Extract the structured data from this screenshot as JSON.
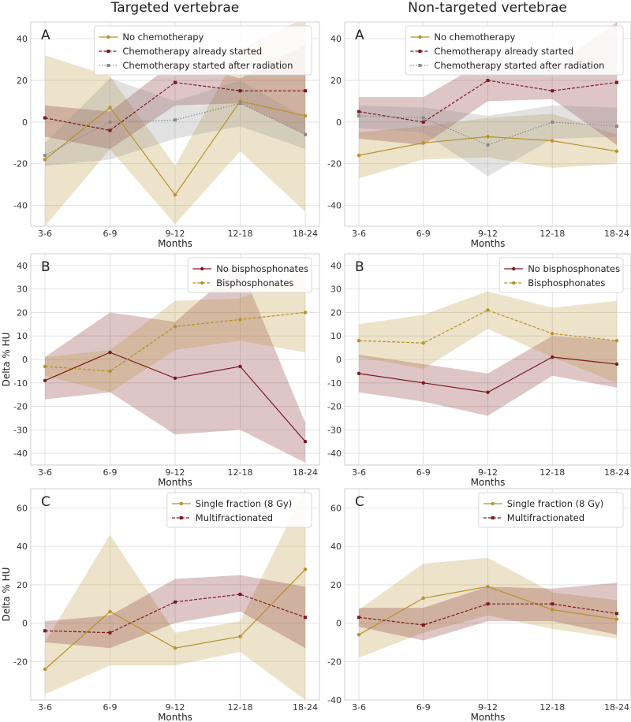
{
  "column_titles": [
    "Targeted vertebrae",
    "Non-targeted vertebrae"
  ],
  "colors": {
    "gold": "#b8912a",
    "maroon": "#7b1a1f",
    "gray": "#8a8a8a",
    "grid": "#e2e2e2",
    "frame": "#cfcfcf"
  },
  "chart_data": [
    {
      "type": "line",
      "panel": "A",
      "column": "Targeted vertebrae",
      "xlabel": "Months",
      "ylabel": "",
      "ylim": [
        -50,
        48
      ],
      "yticks": [
        -40,
        -20,
        0,
        20,
        40
      ],
      "categories": [
        "3-6",
        "6-9",
        "9-12",
        "12-18",
        "18-24"
      ],
      "legend_position": "top-right",
      "series": [
        {
          "name": "No chemotherapy",
          "color": "#b8912a",
          "dash": "",
          "marker": "circle",
          "values": [
            -18,
            7,
            -35,
            10,
            3
          ],
          "lower": [
            -50,
            -13,
            -49,
            -14,
            -43
          ],
          "upper": [
            32,
            22,
            -21,
            35,
            50
          ]
        },
        {
          "name": "Chemotherapy already started",
          "color": "#7b1a1f",
          "dash": "4,2",
          "marker": "square",
          "values": [
            2,
            -4,
            19,
            15,
            15
          ],
          "lower": [
            -7,
            -13,
            8,
            9,
            -6
          ],
          "upper": [
            8,
            5,
            29,
            21,
            37
          ]
        },
        {
          "name": "Chemotherapy started after radiation",
          "color": "#8a8a8a",
          "dash": "1.5,2",
          "marker": "square",
          "values": [
            -16,
            0,
            1,
            9,
            -6
          ],
          "lower": [
            -21,
            -18,
            -8,
            -2,
            -13
          ],
          "upper": [
            -10,
            21,
            10,
            20,
            2
          ]
        }
      ]
    },
    {
      "type": "line",
      "panel": "A",
      "column": "Non-targeted vertebrae",
      "xlabel": "Months",
      "ylabel": "",
      "ylim": [
        -50,
        48
      ],
      "yticks": [
        -40,
        -20,
        0,
        20,
        40
      ],
      "categories": [
        "3-6",
        "6-9",
        "9-12",
        "12-18",
        "18-24"
      ],
      "legend_position": "top-right",
      "series": [
        {
          "name": "No chemotherapy",
          "color": "#b8912a",
          "dash": "",
          "marker": "circle",
          "values": [
            -16,
            -10,
            -7,
            -9,
            -14
          ],
          "lower": [
            -27,
            -18,
            -17,
            -22,
            -20
          ],
          "upper": [
            -5,
            -2,
            2,
            4,
            -6
          ]
        },
        {
          "name": "Chemotherapy already started",
          "color": "#7b1a1f",
          "dash": "4,2",
          "marker": "square",
          "values": [
            5,
            0,
            20,
            15,
            19
          ],
          "lower": [
            -8,
            -11,
            10,
            11,
            -11
          ],
          "upper": [
            12,
            12,
            30,
            26,
            48
          ]
        },
        {
          "name": "Chemotherapy started after radiation",
          "color": "#8a8a8a",
          "dash": "1.5,2",
          "marker": "square",
          "values": [
            3,
            2,
            -11,
            0,
            -2
          ],
          "lower": [
            -3,
            -5,
            -26,
            -8,
            -7
          ],
          "upper": [
            8,
            7,
            3,
            8,
            7
          ]
        }
      ]
    },
    {
      "type": "line",
      "panel": "B",
      "column": "Targeted vertebrae",
      "xlabel": "Months",
      "ylabel": "Delta % HU",
      "ylim": [
        -45,
        45
      ],
      "yticks": [
        -40,
        -30,
        -20,
        -10,
        0,
        10,
        20,
        30,
        40
      ],
      "categories": [
        "3-6",
        "6-9",
        "9-12",
        "12-18",
        "18-24"
      ],
      "legend_position": "top-right",
      "series": [
        {
          "name": "No bisphosphonates",
          "color": "#7b1a1f",
          "dash": "",
          "marker": "circle",
          "values": [
            -9,
            3,
            -8,
            -3,
            -35
          ],
          "lower": [
            -17,
            -14,
            -32,
            -30,
            -44
          ],
          "upper": [
            1,
            20,
            16,
            40,
            -27
          ]
        },
        {
          "name": "Bisphosphonates",
          "color": "#b8912a",
          "dash": "4,2",
          "marker": "circle",
          "values": [
            -3,
            -5,
            14,
            17,
            20
          ],
          "lower": [
            -7,
            -14,
            4,
            8,
            3
          ],
          "upper": [
            1,
            4,
            25,
            26,
            38
          ]
        }
      ]
    },
    {
      "type": "line",
      "panel": "B",
      "column": "Non-targeted vertebrae",
      "xlabel": "Months",
      "ylabel": "",
      "ylim": [
        -45,
        45
      ],
      "yticks": [
        -40,
        -30,
        -20,
        -10,
        0,
        10,
        20,
        30,
        40
      ],
      "categories": [
        "3-6",
        "6-9",
        "9-12",
        "12-18",
        "18-24"
      ],
      "legend_position": "top-right",
      "series": [
        {
          "name": "No bisphosphonates",
          "color": "#7b1a1f",
          "dash": "",
          "marker": "circle",
          "values": [
            -6,
            -10,
            -14,
            1,
            -2
          ],
          "lower": [
            -14,
            -18,
            -24,
            -7,
            -12
          ],
          "upper": [
            2,
            -2,
            -6,
            10,
            8
          ]
        },
        {
          "name": "Bisphosphonates",
          "color": "#b8912a",
          "dash": "4,2",
          "marker": "circle",
          "values": [
            8,
            7,
            21,
            11,
            8
          ],
          "lower": [
            1,
            -4,
            13,
            1,
            -10
          ],
          "upper": [
            15,
            19,
            29,
            22,
            25
          ]
        }
      ]
    },
    {
      "type": "line",
      "panel": "C",
      "column": "Targeted vertebrae",
      "xlabel": "Months",
      "ylabel": "Delta % HU",
      "ylim": [
        -40,
        70
      ],
      "yticks": [
        -20,
        0,
        20,
        40,
        60
      ],
      "categories": [
        "3-6",
        "6-9",
        "9-12",
        "12-18",
        "18-24"
      ],
      "legend_position": "top-right",
      "series": [
        {
          "name": "Single fraction (8 Gy)",
          "color": "#b8912a",
          "dash": "",
          "marker": "circle",
          "values": [
            -24,
            6,
            -13,
            -7,
            28
          ],
          "lower": [
            -37,
            -22,
            -22,
            -15,
            -40
          ],
          "upper": [
            -10,
            46,
            -5,
            1,
            70
          ]
        },
        {
          "name": "Multifractionated",
          "color": "#7b1a1f",
          "dash": "4,2",
          "marker": "square",
          "values": [
            -4,
            -5,
            11,
            15,
            3
          ],
          "lower": [
            -10,
            -13,
            0,
            6,
            -13
          ],
          "upper": [
            1,
            4,
            23,
            25,
            19
          ]
        }
      ]
    },
    {
      "type": "line",
      "panel": "C",
      "column": "Non-targeted vertebrae",
      "xlabel": "Months",
      "ylabel": "",
      "ylim": [
        -40,
        70
      ],
      "yticks": [
        -40,
        -20,
        0,
        20,
        40,
        60
      ],
      "categories": [
        "3-6",
        "6-9",
        "9-12",
        "12-18",
        "18-24"
      ],
      "legend_position": "top-right",
      "series": [
        {
          "name": "Single fraction (8 Gy)",
          "color": "#b8912a",
          "dash": "",
          "marker": "circle",
          "values": [
            -6,
            13,
            19,
            7,
            2
          ],
          "lower": [
            -18,
            -5,
            4,
            -3,
            -8
          ],
          "upper": [
            7,
            31,
            34,
            16,
            12
          ]
        },
        {
          "name": "Multifractionated",
          "color": "#7b1a1f",
          "dash": "4,2",
          "marker": "square",
          "values": [
            3,
            -1,
            10,
            10,
            5
          ],
          "lower": [
            -2,
            -9,
            1,
            1,
            -6
          ],
          "upper": [
            8,
            8,
            19,
            18,
            21
          ]
        }
      ]
    }
  ]
}
